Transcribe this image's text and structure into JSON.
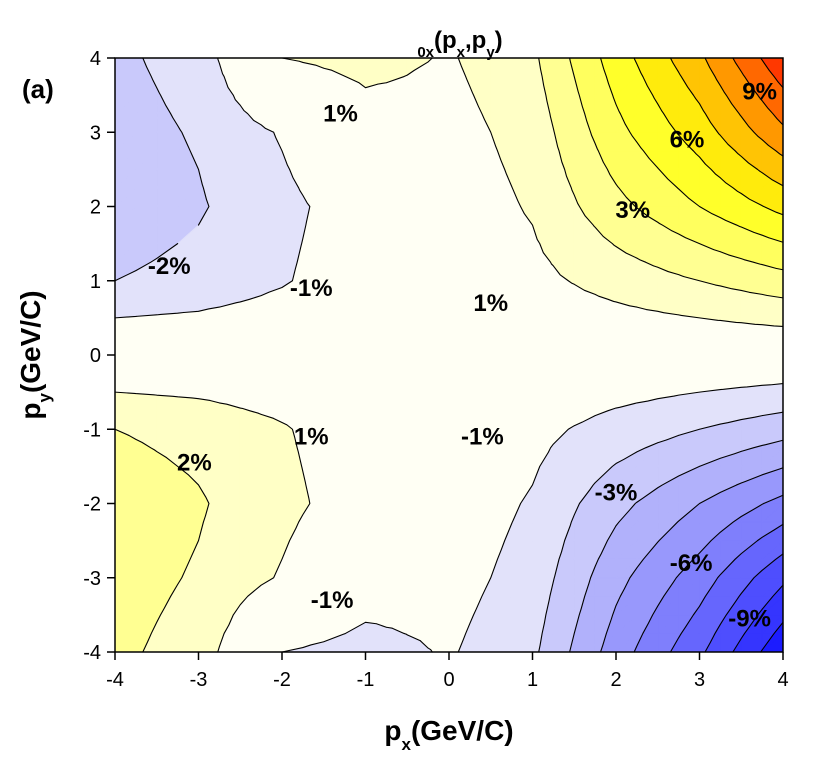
{
  "chart_data": {
    "type": "contour",
    "panel_label": "(a)",
    "title": [
      "0x",
      "(p",
      "x",
      ",p",
      "y",
      ")"
    ],
    "title_sub": [
      true,
      false,
      true,
      false,
      true,
      false
    ],
    "xlabel": [
      "p",
      "x",
      "(GeV/C)"
    ],
    "xlabel_sub": [
      false,
      true,
      false
    ],
    "ylabel": [
      "p",
      "y",
      "(GeV/C)"
    ],
    "ylabel_sub": [
      false,
      true,
      false
    ],
    "xlim": [
      -4,
      4
    ],
    "ylim": [
      -4,
      4
    ],
    "xticks": [
      -4,
      -3,
      -2,
      -1,
      0,
      1,
      2,
      3,
      4
    ],
    "yticks": [
      -4,
      -3,
      -2,
      -1,
      0,
      1,
      2,
      3,
      4
    ],
    "x": [
      -4,
      -3,
      -2,
      -1,
      0,
      1,
      2,
      3,
      4
    ],
    "y": [
      -4,
      -3,
      -2,
      -1,
      0,
      1,
      2,
      3,
      4
    ],
    "z": [
      [
        2.2,
        1.6,
        -1.0,
        -1.4,
        -0.9,
        -1.8,
        -4.5,
        -6.8,
        -9.8
      ],
      [
        2.4,
        1.9,
        0.9,
        -0.4,
        -0.6,
        -1.4,
        -3.7,
        -5.5,
        -7.8
      ],
      [
        2.6,
        2.1,
        1.3,
        0.4,
        -0.4,
        -1.1,
        -2.7,
        -4.0,
        -5.3
      ],
      [
        2.0,
        1.7,
        1.1,
        0.3,
        -0.3,
        -0.7,
        -1.4,
        -2.0,
        -2.6
      ],
      [
        0,
        0,
        0,
        0,
        0,
        0,
        0,
        0,
        0
      ],
      [
        -2.0,
        -1.7,
        -1.1,
        -0.3,
        0.3,
        0.7,
        1.4,
        2.0,
        2.6
      ],
      [
        -2.6,
        -2.1,
        -1.3,
        -0.4,
        0.4,
        1.1,
        2.7,
        4.0,
        5.3
      ],
      [
        -2.4,
        -1.9,
        -0.9,
        0.4,
        0.6,
        1.4,
        3.7,
        5.5,
        7.8
      ],
      [
        -2.2,
        -1.6,
        1.0,
        1.4,
        0.9,
        1.8,
        4.5,
        6.8,
        9.8
      ]
    ],
    "levels": [
      -9,
      -8,
      -7,
      -6,
      -5,
      -4,
      -3,
      -2,
      -1,
      1,
      2,
      3,
      4,
      5,
      6,
      7,
      8,
      9
    ],
    "colormap": [
      [
        -10,
        "#1010ff"
      ],
      [
        -1.5,
        "#e2e2fa"
      ],
      [
        0,
        "#fffff4"
      ],
      [
        1.5,
        "#ffffc6"
      ],
      [
        5,
        "#ffff10"
      ],
      [
        7,
        "#ffb000"
      ],
      [
        10,
        "#ff2000"
      ]
    ],
    "contour_labels": [
      "9%",
      "6%",
      "3%",
      "1%",
      "-2%",
      "-1%",
      "1%",
      "1%",
      "2%",
      "-1%",
      "-3%",
      "-6%",
      "-1%",
      "-9%"
    ]
  }
}
